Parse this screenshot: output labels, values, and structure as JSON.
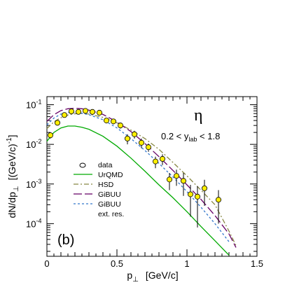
{
  "chart_data": {
    "type": "line",
    "title": "",
    "xlabel": "p",
    "xlabel_sub": "⊥",
    "xlabel_unit": "[GeV/c]",
    "ylabel_main": "dN/dp",
    "ylabel_sub": "⊥",
    "ylabel_unit": "[(GeV/c)",
    "ylabel_exp": "-1",
    "ylabel_close": "]",
    "xlim": [
      0,
      1.5
    ],
    "ylim": [
      1.5e-05,
      0.16
    ],
    "yscale": "log",
    "legend_position": "center-left",
    "x_ticks": [
      "0",
      "0.5",
      "1",
      "1.5"
    ],
    "y_ticks": [
      {
        "base": "10",
        "exp": "-1"
      },
      {
        "base": "10",
        "exp": "-2"
      },
      {
        "base": "10",
        "exp": "-3"
      },
      {
        "base": "10",
        "exp": "-4"
      }
    ],
    "panel_label": "(b)",
    "particle_symbol": "η",
    "cut_parts": [
      "0.2 < y",
      "lab",
      " < 1.8"
    ],
    "series": [
      {
        "name": "data",
        "kind": "points",
        "color": "#ffee00",
        "x": [
          0.025,
          0.075,
          0.125,
          0.175,
          0.225,
          0.275,
          0.325,
          0.375,
          0.425,
          0.475,
          0.525,
          0.575,
          0.625,
          0.675,
          0.725,
          0.775,
          0.825,
          0.875,
          0.925,
          0.975,
          1.025,
          1.075,
          1.125,
          1.225
        ],
        "y": [
          0.017,
          0.035,
          0.055,
          0.068,
          0.066,
          0.07,
          0.066,
          0.063,
          0.04,
          0.038,
          0.03,
          0.014,
          0.018,
          0.011,
          0.0085,
          0.0037,
          0.0043,
          0.0013,
          0.0016,
          0.0012,
          0.00055,
          0.00048,
          0.00078,
          0.0004
        ],
        "yerr": [
          0.003,
          0.005,
          0.007,
          0.008,
          0.008,
          0.008,
          0.008,
          0.007,
          0.006,
          0.006,
          0.005,
          0.004,
          0.004,
          0.003,
          0.002,
          0.0012,
          0.0013,
          0.0006,
          0.0007,
          0.0007,
          0.0004,
          0.0004,
          0.0005,
          0.0003
        ]
      },
      {
        "name": "UrQMD",
        "kind": "line",
        "color": "#00aa00",
        "dash": "",
        "x": [
          0.0,
          0.05,
          0.1,
          0.15,
          0.2,
          0.25,
          0.3,
          0.4,
          0.5,
          0.6,
          0.7,
          0.8,
          0.9,
          1.0,
          1.1,
          1.2,
          1.3
        ],
        "y": [
          0.012,
          0.02,
          0.026,
          0.029,
          0.029,
          0.027,
          0.024,
          0.016,
          0.009,
          0.0045,
          0.0021,
          0.00095,
          0.00045,
          0.0002,
          8.5e-05,
          3.7e-05,
          1.6e-05
        ]
      },
      {
        "name": "HSD",
        "kind": "line",
        "color": "#888844",
        "dash": "7,3,2,3",
        "x": [
          0.0,
          0.05,
          0.1,
          0.15,
          0.2,
          0.25,
          0.3,
          0.4,
          0.5,
          0.6,
          0.7,
          0.8,
          0.9,
          1.0,
          1.1,
          1.2,
          1.3,
          1.35
        ],
        "y": [
          0.025,
          0.037,
          0.047,
          0.055,
          0.059,
          0.06,
          0.058,
          0.048,
          0.035,
          0.023,
          0.014,
          0.0075,
          0.0035,
          0.0016,
          0.0007,
          0.0003,
          6.5e-05,
          2.8e-05
        ]
      },
      {
        "name": "GiBUU",
        "kind": "line",
        "color": "#660066",
        "dash": "12,4",
        "x": [
          0.0,
          0.05,
          0.1,
          0.15,
          0.2,
          0.25,
          0.3,
          0.4,
          0.5,
          0.6,
          0.7,
          0.8,
          0.9,
          1.0,
          1.1,
          1.2,
          1.3,
          1.35
        ],
        "y": [
          0.038,
          0.056,
          0.071,
          0.079,
          0.081,
          0.079,
          0.073,
          0.057,
          0.037,
          0.021,
          0.0105,
          0.0049,
          0.0022,
          0.00095,
          0.00041,
          0.00016,
          5.5e-05,
          2.5e-05
        ]
      },
      {
        "name": "GiBUU",
        "kind": "line",
        "color": "#3377cc",
        "dash": "3,3",
        "x": [
          0.0,
          0.05,
          0.1,
          0.15,
          0.2,
          0.25,
          0.3,
          0.4,
          0.5,
          0.6,
          0.7,
          0.8,
          0.9,
          1.0,
          1.1,
          1.2,
          1.3
        ],
        "y": [
          0.031,
          0.046,
          0.058,
          0.063,
          0.064,
          0.061,
          0.056,
          0.042,
          0.026,
          0.014,
          0.007,
          0.0033,
          0.0015,
          0.00064,
          0.00026,
          0.0001,
          3.5e-05
        ]
      },
      {
        "name": "ext. res.",
        "kind": "label",
        "color": "#000000"
      }
    ]
  }
}
